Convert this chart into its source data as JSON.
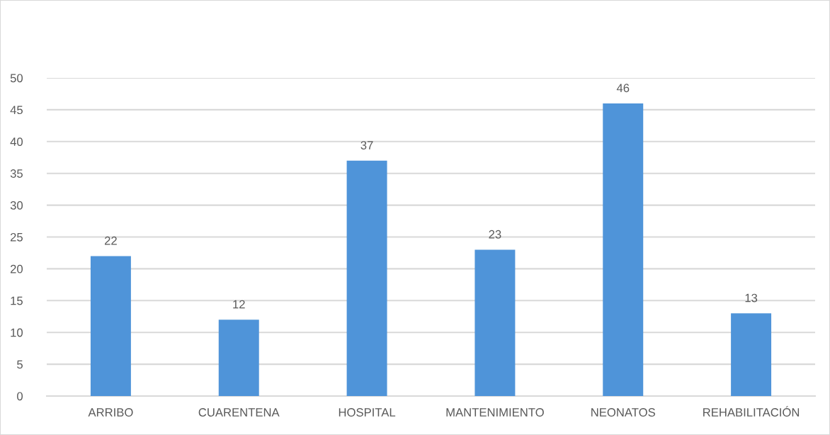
{
  "chart_data": {
    "type": "bar",
    "categories": [
      "ARRIBO",
      "CUARENTENA",
      "HOSPITAL",
      "MANTENIMIENTO",
      "NEONATOS",
      "REHABILITACIÓN"
    ],
    "values": [
      22,
      12,
      37,
      23,
      46,
      13
    ],
    "color": "#4f94d9",
    "ylim": [
      0,
      50
    ],
    "yticks": [
      0,
      5,
      10,
      15,
      20,
      25,
      30,
      35,
      40,
      45,
      50
    ],
    "grid": "y",
    "data_labels": true,
    "legend": false
  }
}
